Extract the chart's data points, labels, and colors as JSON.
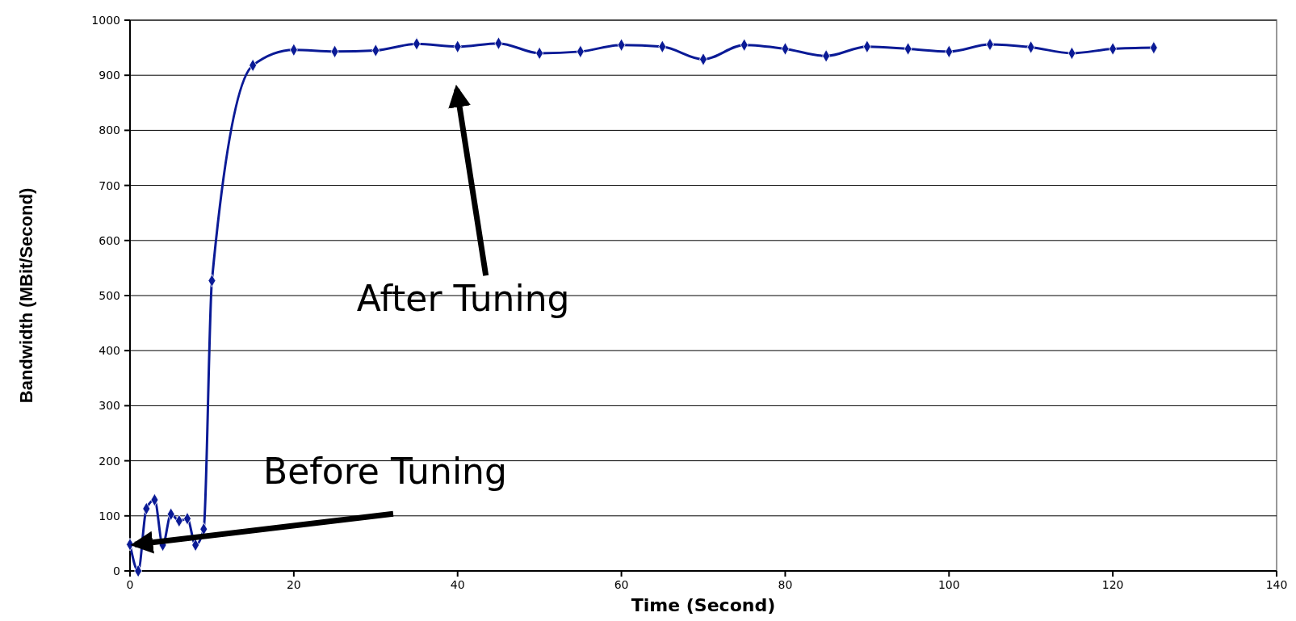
{
  "chart_data": {
    "type": "line",
    "xlabel": "Time (Second)",
    "ylabel": "Bandwidth (MBit/Second)",
    "x": [
      0,
      1,
      2,
      3,
      4,
      5,
      6,
      7,
      8,
      9,
      10,
      15,
      20,
      25,
      30,
      35,
      40,
      45,
      50,
      55,
      60,
      65,
      70,
      75,
      80,
      85,
      90,
      95,
      100,
      105,
      110,
      115,
      120,
      125
    ],
    "series": [
      {
        "color": "#0a1a96",
        "values": [
          48,
          0,
          113,
          129,
          47,
          103,
          91,
          95,
          47,
          76,
          527,
          918,
          946,
          943,
          945,
          957,
          952,
          958,
          940,
          943,
          955,
          952,
          929,
          955,
          948,
          935,
          952,
          948,
          943,
          956,
          951,
          940,
          948,
          950
        ]
      }
    ],
    "xlim": [
      0,
      140
    ],
    "xticks": [
      0,
      20,
      40,
      60,
      80,
      100,
      120,
      140
    ],
    "ylim": [
      0,
      1000
    ],
    "yticks": [
      0,
      100,
      200,
      300,
      400,
      500,
      600,
      700,
      800,
      900,
      1000
    ],
    "grid": "y",
    "marker": "diamond",
    "line_style": "solid",
    "annotations": [
      "After Tuning",
      {
        "text": "Before Tuning",
        "x": 0,
        "y": 48
      }
    ]
  }
}
